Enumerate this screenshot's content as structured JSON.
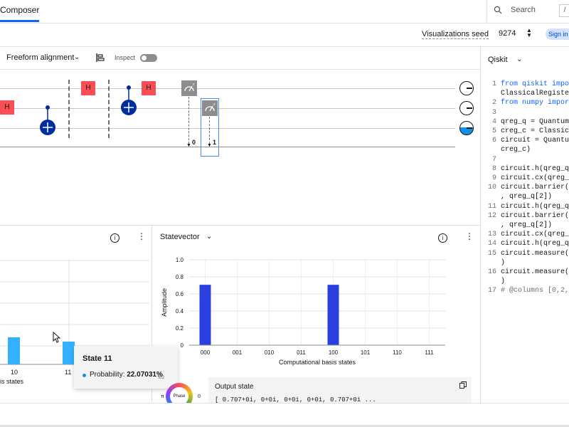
{
  "header": {
    "tab_label": "Composer",
    "search_label": "Search",
    "search_shortcut": "/"
  },
  "seed": {
    "label": "Visualizations seed",
    "value": "9274",
    "signin_label": "Sign in"
  },
  "toolbar": {
    "alignment_label": "Freeform alignment",
    "inspect_label": "Inspect"
  },
  "circuit": {
    "gates": [
      "H",
      "H",
      "H"
    ],
    "measure_indices": [
      "0",
      "1"
    ]
  },
  "probabilities_panel": {
    "x_tick_labels": [
      "10",
      "11"
    ],
    "xlabel_fragment": "is states",
    "tooltip_title": "State 11",
    "tooltip_label": "Probability:",
    "tooltip_value": "22.07031%"
  },
  "statevector_panel": {
    "title": "Statevector",
    "output_title": "Output state",
    "output_value": "[ 0.707+0i, 0+0i, 0+0i, 0+0i, 0.707+0i ...",
    "phase_label": "Phase",
    "phase_left": "π",
    "phase_right": "0",
    "phase_top": "π/2"
  },
  "chart_data": {
    "type": "bar",
    "categories": [
      "000",
      "001",
      "010",
      "011",
      "100",
      "101",
      "110",
      "111"
    ],
    "values": [
      0.707,
      0,
      0,
      0,
      0.707,
      0,
      0,
      0
    ],
    "xlabel": "Computational basis states",
    "ylabel": "Amplitude",
    "ylim": [
      0,
      1.0
    ],
    "yticks": [
      "0",
      "0.2",
      "0.4",
      "0.6",
      "0.8",
      "1.0"
    ],
    "grid": true,
    "color": "#2a3fe0"
  },
  "code_panel": {
    "language_label": "Qiskit",
    "lines": [
      {
        "n": "1",
        "text": "from qiskit impo"
      },
      {
        "n": "",
        "text": "ClassicalRegiste"
      },
      {
        "n": "2",
        "text": "from numpy impor"
      },
      {
        "n": "3",
        "text": ""
      },
      {
        "n": "4",
        "text": "qreg_q = Quantum"
      },
      {
        "n": "5",
        "text": "creg_c = Classic"
      },
      {
        "n": "6",
        "text": "circuit = Quantu"
      },
      {
        "n": "",
        "text": "creg_c)"
      },
      {
        "n": "7",
        "text": ""
      },
      {
        "n": "8",
        "text": "circuit.h(qreg_q"
      },
      {
        "n": "9",
        "text": "circuit.cx(qreg_"
      },
      {
        "n": "10",
        "text": "circuit.barrier("
      },
      {
        "n": "",
        "text": ", qreg_q[2])"
      },
      {
        "n": "11",
        "text": "circuit.h(qreg_q"
      },
      {
        "n": "12",
        "text": "circuit.barrier("
      },
      {
        "n": "",
        "text": ", qreg_q[2])"
      },
      {
        "n": "13",
        "text": "circuit.cx(qreg_"
      },
      {
        "n": "14",
        "text": "circuit.h(qreg_q"
      },
      {
        "n": "15",
        "text": "circuit.measure("
      },
      {
        "n": "",
        "text": ")"
      },
      {
        "n": "16",
        "text": "circuit.measure("
      },
      {
        "n": "",
        "text": ")"
      },
      {
        "n": "17",
        "text": "# @columns [0,2,"
      }
    ]
  }
}
